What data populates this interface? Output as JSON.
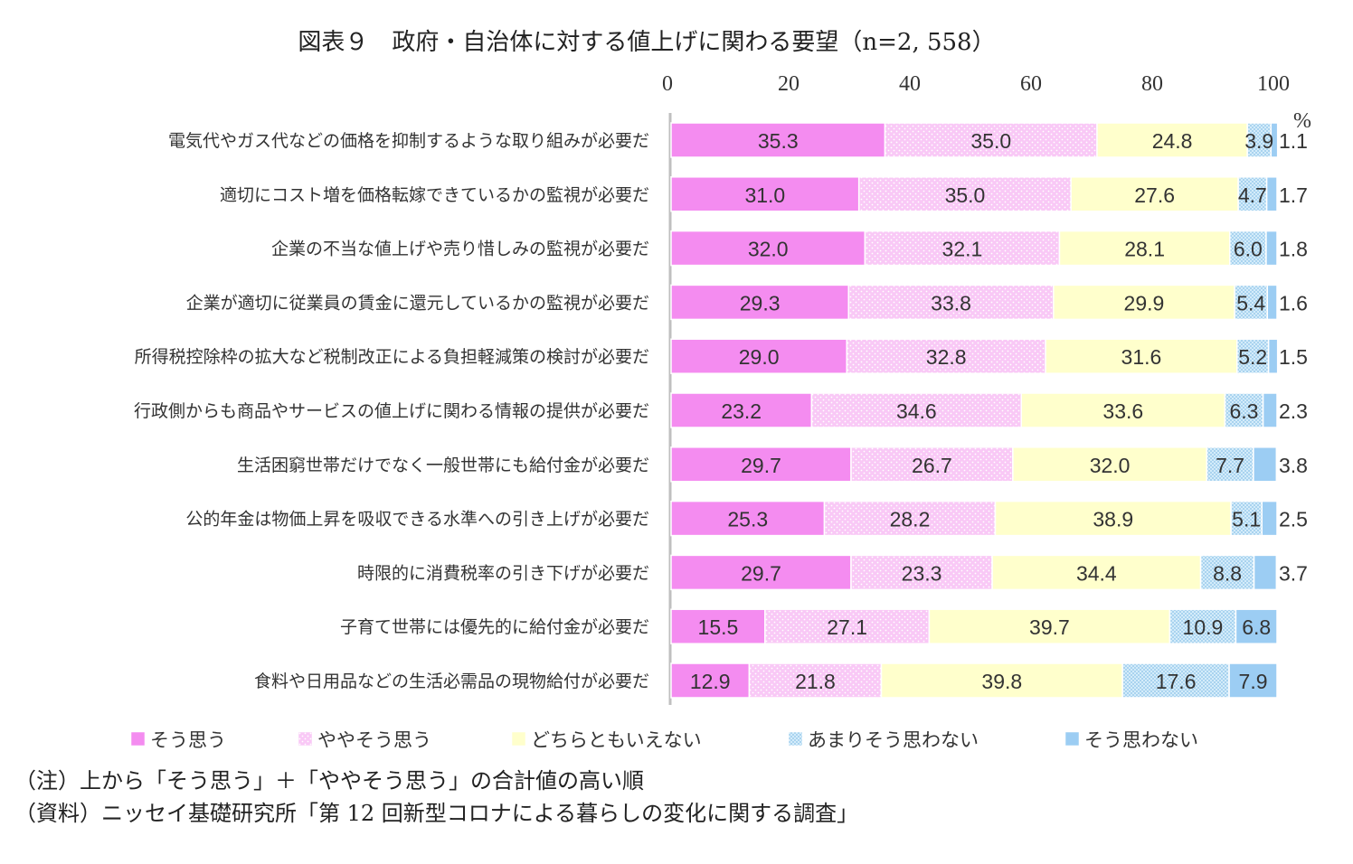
{
  "title": "図表９　政府・自治体に対する値上げに関わる要望（n=2, 558）",
  "notes": [
    "（注）上から「そう思う」＋「ややそう思う」の合計値の高い順",
    "（資料）ニッセイ基礎研究所「第 12 回新型コロナによる暮らしの変化に関する調査」"
  ],
  "chart_data": {
    "type": "bar",
    "orientation": "horizontal",
    "stacked": true,
    "unit": "%",
    "xlim": [
      0,
      100
    ],
    "x_ticks": [
      "0",
      "20",
      "40",
      "60",
      "80",
      "100"
    ],
    "grid": false,
    "legend_position": "bottom",
    "categories": [
      "電気代やガス代などの価格を抑制するような取り組みが必要だ",
      "適切にコスト増を価格転嫁できているかの監視が必要だ",
      "企業の不当な値上げや売り惜しみの監視が必要だ",
      "企業が適切に従業員の賃金に還元しているかの監視が必要だ",
      "所得税控除枠の拡大など税制改正による負担軽減策の検討が必要だ",
      "行政側からも商品やサービスの値上げに関わる情報の提供が必要だ",
      "生活困窮世帯だけでなく一般世帯にも給付金が必要だ",
      "公的年金は物価上昇を吸収できる水準への引き上げが必要だ",
      "時限的に消費税率の引き下げが必要だ",
      "子育て世帯には優先的に給付金が必要だ",
      "食料や日用品などの生活必需品の現物給付が必要だ"
    ],
    "series": [
      {
        "name": "そう思う",
        "color": "#f48cf0",
        "pattern": "solid",
        "values": [
          35.3,
          31.0,
          32.0,
          29.3,
          29.0,
          23.2,
          29.7,
          25.3,
          29.7,
          15.5,
          12.9
        ]
      },
      {
        "name": "ややそう思う",
        "color": "#f9c6f5",
        "pattern": "dots",
        "values": [
          35.0,
          35.0,
          32.1,
          33.8,
          32.8,
          34.6,
          26.7,
          28.2,
          23.3,
          27.1,
          21.8
        ]
      },
      {
        "name": "どちらともいえない",
        "color": "#ffffcc",
        "pattern": "solid",
        "values": [
          24.8,
          27.6,
          28.1,
          29.9,
          31.6,
          33.6,
          32.0,
          38.9,
          34.4,
          39.7,
          39.8
        ]
      },
      {
        "name": "あまりそう思わない",
        "color": "#c6e4f5",
        "pattern": "checker",
        "values": [
          3.9,
          4.7,
          6.0,
          5.4,
          5.2,
          6.3,
          7.7,
          5.1,
          8.8,
          10.9,
          17.6
        ]
      },
      {
        "name": "そう思わない",
        "color": "#9ccdf3",
        "pattern": "solid",
        "values": [
          1.1,
          1.7,
          1.8,
          1.6,
          1.5,
          2.3,
          3.8,
          2.5,
          3.7,
          6.8,
          7.9
        ]
      }
    ]
  }
}
